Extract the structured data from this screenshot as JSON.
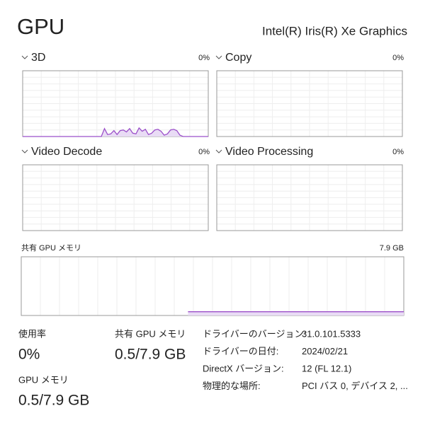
{
  "header": {
    "title": "GPU",
    "adapter": "Intel(R) Iris(R) Xe Graphics"
  },
  "engines": [
    {
      "name": "3D",
      "value_label": "0%",
      "ylim": [
        0,
        100
      ],
      "samples": [
        0,
        0,
        0,
        0,
        0,
        0,
        0,
        0,
        0,
        0,
        0,
        0,
        0,
        0,
        0,
        0,
        0,
        0,
        0,
        0,
        0,
        0,
        0,
        0,
        0,
        0,
        12,
        3,
        4,
        9,
        3,
        9,
        10,
        7,
        12,
        5,
        4,
        13,
        8,
        11,
        3,
        5,
        10,
        11,
        8,
        2,
        4,
        10,
        11,
        9,
        2,
        0,
        0,
        0,
        0,
        0,
        0,
        0,
        0,
        0
      ]
    },
    {
      "name": "Copy",
      "value_label": "0%"
    },
    {
      "name": "Video Decode",
      "value_label": "0%"
    },
    {
      "name": "Video Processing",
      "value_label": "0%"
    }
  ],
  "shared_memory": {
    "title": "共有 GPU メモリ",
    "max": {
      "value": 7.9,
      "label": "7.9 GB"
    },
    "samples": [
      null,
      null,
      null,
      null,
      null,
      null,
      null,
      null,
      null,
      null,
      null,
      null,
      null,
      null,
      null,
      null,
      null,
      0.5,
      0.5,
      0.5,
      0.5,
      0.5,
      0.5,
      0.5,
      0.5,
      0.5,
      0.5,
      0.5,
      0.5,
      0.5,
      0.5,
      0.5,
      0.5,
      0.5,
      0.5,
      0.5,
      0.5,
      0.5,
      0.5,
      0.5
    ]
  },
  "stats": [
    {
      "label": "使用率",
      "value": "0%"
    },
    {
      "label": "共有 GPU メモリ",
      "value": "0.5/7.9 GB"
    },
    {
      "label": "GPU メモリ",
      "value": "0.5/7.9 GB"
    }
  ],
  "details": [
    {
      "label": "ドライバーのバージョン:",
      "value": "31.0.101.5333"
    },
    {
      "label": "ドライバーの日付:",
      "value": "2024/02/21"
    },
    {
      "label": "DirectX バージョン:",
      "value": "12 (FL 12.1)"
    },
    {
      "label": "物理的な場所:",
      "value": "PCI バス 0, デバイス 2, ..."
    }
  ]
}
